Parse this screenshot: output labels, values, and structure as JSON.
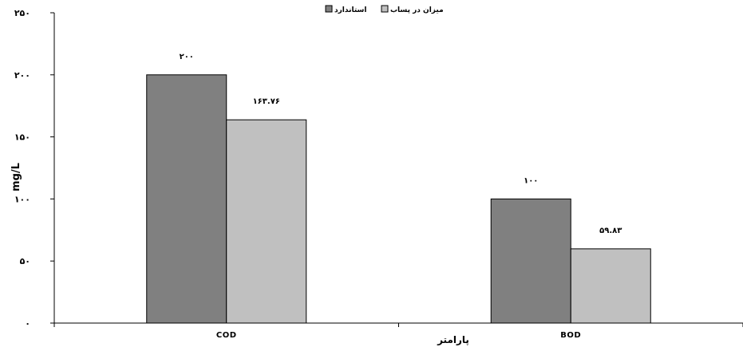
{
  "chart_data": {
    "type": "bar",
    "categories": [
      "COD",
      "BOD"
    ],
    "series": [
      {
        "name": "استاندارد",
        "values": [
          200,
          100
        ],
        "color": "#808080"
      },
      {
        "name": "میزان در پساب",
        "values": [
          163.76,
          59.83
        ],
        "color": "#c0c0c0"
      }
    ],
    "value_labels": [
      [
        "۲۰۰",
        "۱۰۰"
      ],
      [
        "۱۶۳.۷۶",
        "۵۹.۸۳"
      ]
    ],
    "ylim": [
      0,
      250
    ],
    "yticks": [
      0,
      50,
      100,
      150,
      200,
      250
    ],
    "ytick_labels": [
      "۰",
      "۵۰",
      "۱۰۰",
      "۱۵۰",
      "۲۰۰",
      "۲۵۰"
    ],
    "ylabel": "mg/L",
    "xlabel": "پارامتر",
    "legend_position": "top"
  }
}
